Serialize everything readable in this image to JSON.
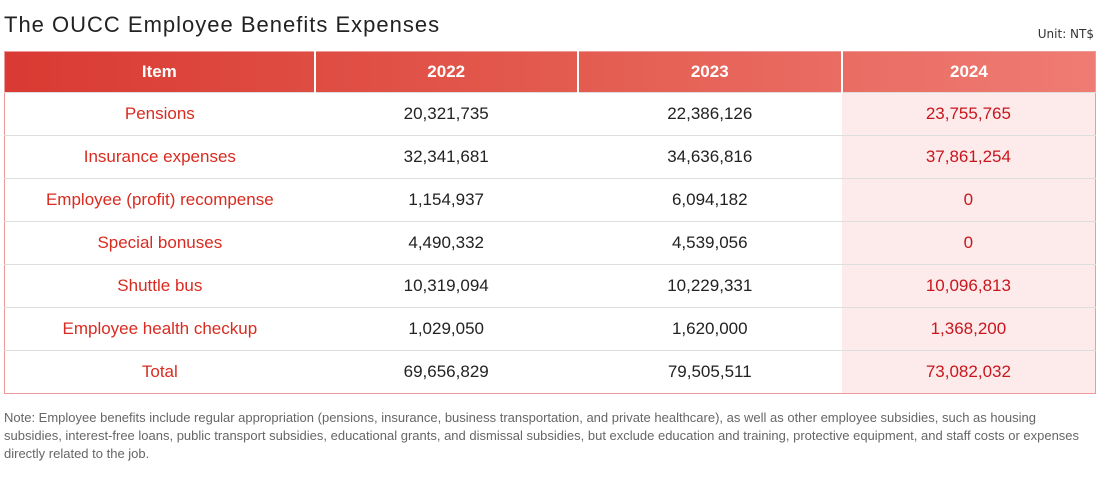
{
  "title": "The OUCC Employee Benefits Expenses",
  "unit": "Unit: NT$",
  "table": {
    "headers": [
      "Item",
      "2022",
      "2023",
      "2024"
    ],
    "rows": [
      [
        "Pensions",
        "20,321,735",
        "22,386,126",
        "23,755,765"
      ],
      [
        "Insurance expenses",
        "32,341,681",
        "34,636,816",
        "37,861,254"
      ],
      [
        "Employee (profit) recompense",
        "1,154,937",
        "6,094,182",
        "0"
      ],
      [
        "Special bonuses",
        "4,490,332",
        "4,539,056",
        "0"
      ],
      [
        "Shuttle bus",
        "10,319,094",
        "10,229,331",
        "10,096,813"
      ],
      [
        "Employee health checkup",
        "1,029,050",
        "1,620,000",
        "1,368,200"
      ],
      [
        "Total",
        "69,656,829",
        "79,505,511",
        "73,082,032"
      ]
    ]
  },
  "note": "Note: Employee benefits include regular appropriation (pensions, insurance, business transportation, and private healthcare), as well as other employee subsidies, such as housing subsidies, interest-free loans, public transport subsidies, educational grants, and dismissal subsidies, but exclude education and training, protective equipment, and staff costs or expenses directly related to the job.",
  "colors": {
    "header_start": "#d93a33",
    "header_end": "#ef7c74",
    "item_text": "#d92b20",
    "highlight_bg": "#fdeaea",
    "highlight_text": "#c8161d"
  }
}
